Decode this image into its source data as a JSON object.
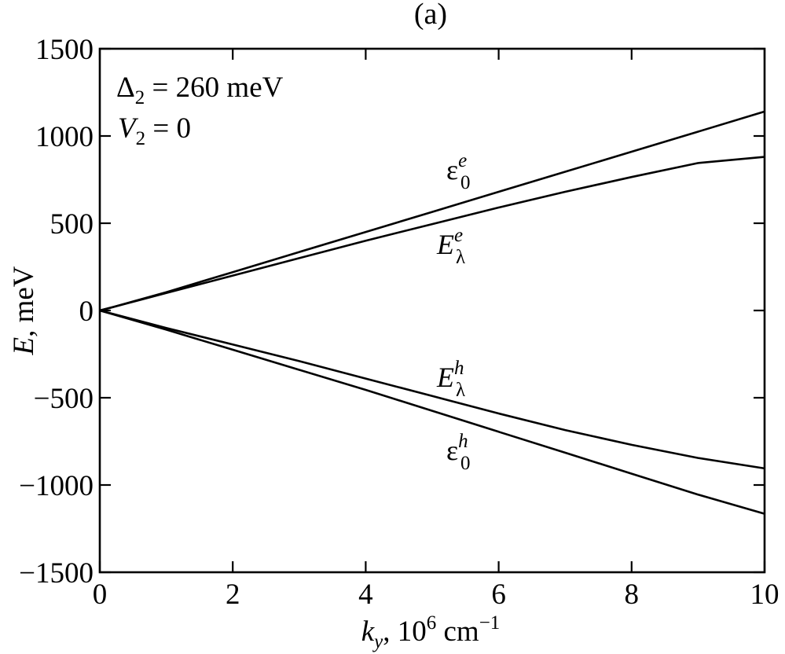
{
  "panel_label": "(a)",
  "chart_data": {
    "type": "line",
    "xlabel": {
      "main": "k",
      "sub": "y",
      "rest": ", 10",
      "sup": "6",
      "unit": " cm",
      "unit_sup": "−1"
    },
    "ylabel": {
      "main": "E",
      "rest": ", meV"
    },
    "xlim": [
      0,
      10
    ],
    "ylim": [
      -1500,
      1500
    ],
    "x_ticks": [
      0,
      2,
      4,
      6,
      8,
      10
    ],
    "x_tick_labels": [
      "0",
      "2",
      "4",
      "6",
      "8",
      "10"
    ],
    "y_ticks": [
      1500,
      1000,
      500,
      0,
      -500,
      -1000,
      -1500
    ],
    "y_tick_labels": [
      "1500",
      "1000",
      "500",
      "0",
      "−500",
      "−1000",
      "−1500"
    ],
    "grid": false,
    "annotation": {
      "line1": {
        "sym": "Δ",
        "sub": "2",
        "rest": " = 260 meV"
      },
      "line2": {
        "sym": "V",
        "sub": "2",
        "rest": " = 0"
      }
    },
    "series": [
      {
        "label_main": "ε",
        "label_sup": "e",
        "label_sub": "0",
        "x": [
          0,
          0.2,
          1,
          2,
          3,
          4,
          5,
          6,
          7,
          8,
          9,
          10
        ],
        "y": [
          0,
          20,
          105,
          220,
          335,
          450,
          565,
          680,
          795,
          910,
          1025,
          1140
        ]
      },
      {
        "label_main": "E",
        "label_sup": "e",
        "label_sub": "λ",
        "x": [
          0,
          0.2,
          1,
          2,
          3,
          4,
          5,
          6,
          7,
          8,
          9,
          10
        ],
        "y": [
          0,
          20,
          100,
          200,
          300,
          400,
          495,
          590,
          680,
          765,
          845,
          880
        ]
      },
      {
        "label_main": "E",
        "label_sup": "h",
        "label_sub": "λ",
        "x": [
          0,
          0.2,
          1,
          2,
          3,
          4,
          5,
          6,
          7,
          8,
          9,
          10
        ],
        "y": [
          0,
          -20,
          -100,
          -195,
          -290,
          -390,
          -490,
          -590,
          -685,
          -770,
          -845,
          -905
        ]
      },
      {
        "label_main": "ε",
        "label_sup": "h",
        "label_sub": "0",
        "x": [
          0,
          0.2,
          1,
          2,
          3,
          4,
          5,
          6,
          7,
          8,
          9,
          10
        ],
        "y": [
          0,
          -22,
          -110,
          -225,
          -340,
          -455,
          -575,
          -695,
          -815,
          -935,
          -1055,
          -1165
        ]
      }
    ]
  }
}
